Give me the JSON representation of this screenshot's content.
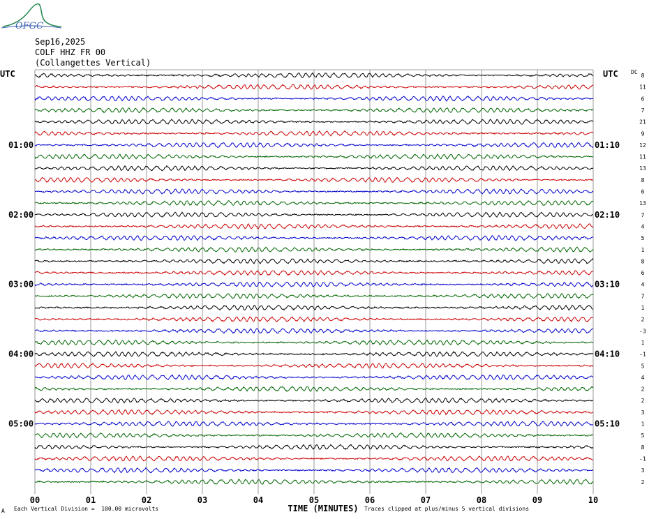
{
  "logo": {
    "text": "OFGC"
  },
  "header": {
    "date": "Sep16,2025",
    "station": "COLF HHZ FR 00",
    "location": "(Collangettes Vertical)"
  },
  "left_tz": "UTC",
  "right_tz": "UTC",
  "dc_header": "DC",
  "xlabel": "TIME (MINUTES)",
  "footer_left": "Each Vertical Division =  100.00 microvolts",
  "footer_right": "Traces clipped at plus/minus 5 vertical divisions",
  "footer_mark": "A",
  "colors": {
    "black": "#000000",
    "red": "#cc0000",
    "blue": "#0000cc",
    "green": "#006600",
    "grid": "#808080"
  },
  "chart_data": {
    "type": "line",
    "x_range": [
      0,
      10
    ],
    "x_ticks": [
      "00",
      "01",
      "02",
      "03",
      "04",
      "05",
      "06",
      "07",
      "08",
      "09",
      "10"
    ],
    "trace_count": 36,
    "trace_color_cycle": [
      "black",
      "red",
      "blue",
      "green"
    ],
    "left_hour_labels": [
      {
        "trace": 6,
        "label": "01:00"
      },
      {
        "trace": 12,
        "label": "02:00"
      },
      {
        "trace": 18,
        "label": "03:00"
      },
      {
        "trace": 24,
        "label": "04:00"
      },
      {
        "trace": 30,
        "label": "05:00"
      }
    ],
    "right_hour_labels": [
      {
        "trace": 6,
        "label": "01:10"
      },
      {
        "trace": 12,
        "label": "02:10"
      },
      {
        "trace": 18,
        "label": "03:10"
      },
      {
        "trace": 24,
        "label": "04:10"
      },
      {
        "trace": 30,
        "label": "05:10"
      }
    ],
    "dc_offsets": [
      "8",
      "11",
      "6",
      "7",
      "21",
      "9",
      "12",
      "11",
      "13",
      "8",
      "6",
      "13",
      "7",
      "4",
      "5",
      "1",
      "8",
      "6",
      "4",
      "7",
      "1",
      "2",
      "-3",
      "1",
      "-1",
      "5",
      "4",
      "2",
      "2",
      "3",
      "1",
      "5",
      "8",
      "-1",
      "3",
      "2"
    ]
  }
}
